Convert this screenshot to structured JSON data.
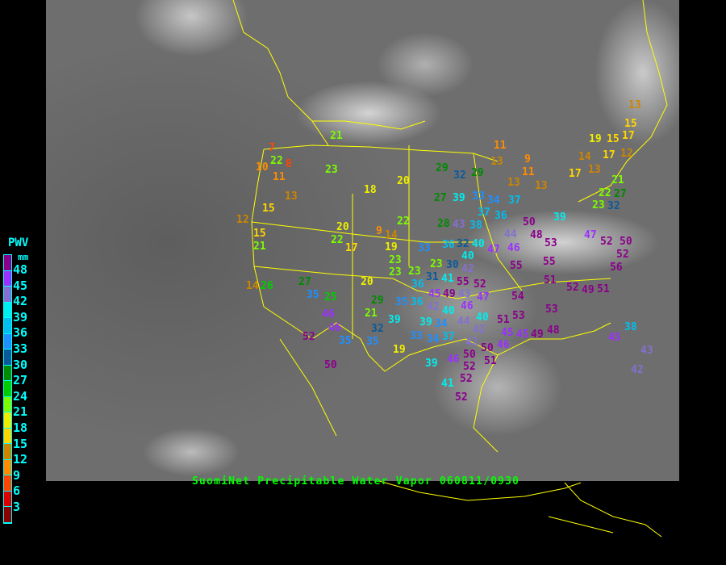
{
  "title": "SuomiNet Precipitable Water Vapor 060811/0930",
  "legend": {
    "title": "PWV",
    "unit": "mm",
    "ticks": [
      "48",
      "45",
      "42",
      "39",
      "36",
      "33",
      "30",
      "27",
      "24",
      "21",
      "18",
      "15",
      "12",
      "9",
      "6",
      "3"
    ],
    "colors": [
      "#8b008b",
      "#9b30ff",
      "#8470d0",
      "#00eeee",
      "#00bfee",
      "#1e90ff",
      "#0a5a9a",
      "#008b00",
      "#00cd00",
      "#7cfc00",
      "#eeee00",
      "#ffd700",
      "#cd8500",
      "#ff8c00",
      "#ff4500",
      "#dd0000",
      "#8b0000"
    ]
  },
  "border_color": "#ffff00",
  "stations": [
    "21",
    "7",
    "22",
    "10",
    "8",
    "11",
    "23",
    "18",
    "20",
    "13",
    "15",
    "12",
    "15",
    "21",
    "20",
    "22",
    "17",
    "9",
    "14",
    "19",
    "22",
    "23",
    "23",
    "23",
    "14",
    "26",
    "27",
    "20",
    "35",
    "25",
    "29",
    "32",
    "29",
    "27",
    "39",
    "33",
    "34",
    "37",
    "37",
    "36",
    "28",
    "43",
    "38",
    "36",
    "40",
    "47",
    "46",
    "44",
    "48",
    "50",
    "53",
    "39",
    "33",
    "32",
    "23",
    "30",
    "40",
    "55",
    "55",
    "47",
    "52",
    "50",
    "52",
    "56",
    "51",
    "52",
    "51",
    "49",
    "21",
    "22",
    "27",
    "23",
    "32",
    "11",
    "13",
    "9",
    "11",
    "13",
    "13",
    "14",
    "17",
    "13",
    "19",
    "17",
    "12",
    "15",
    "17",
    "15",
    "13",
    "31",
    "36",
    "35",
    "36",
    "42",
    "40",
    "39",
    "34",
    "33",
    "37",
    "34",
    "39",
    "21",
    "29",
    "32",
    "19",
    "44",
    "42",
    "40",
    "42",
    "50",
    "50",
    "51",
    "46",
    "52",
    "39",
    "52",
    "41",
    "52",
    "54",
    "53",
    "53",
    "51",
    "45",
    "46",
    "45",
    "49",
    "48",
    "45",
    "38",
    "43",
    "42",
    "46",
    "46",
    "52",
    "35",
    "35",
    "50",
    "41",
    "42",
    "43",
    "45",
    "49",
    "46",
    "47",
    "52",
    "55"
  ]
}
